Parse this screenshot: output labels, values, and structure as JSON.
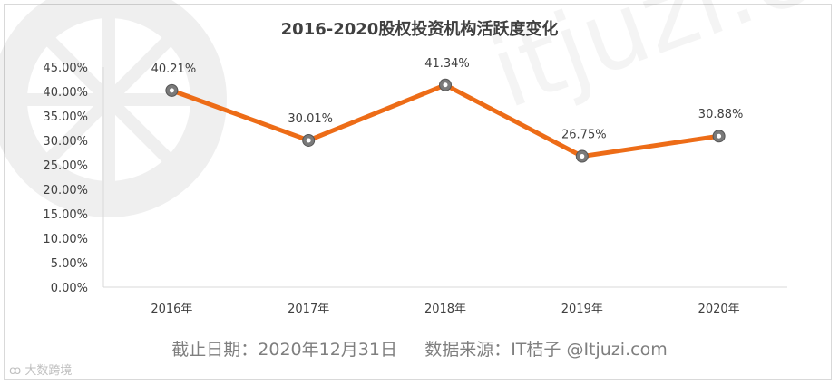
{
  "chart_data": {
    "type": "line",
    "title": "2016-2020股权投资机构活跃度变化",
    "categories": [
      "2016年",
      "2017年",
      "2018年",
      "2019年",
      "2020年"
    ],
    "series": [
      {
        "values": [
          40.21,
          30.01,
          41.34,
          26.75,
          30.88
        ],
        "labels": [
          "40.21%",
          "30.01%",
          "41.34%",
          "26.75%",
          "30.88%"
        ]
      }
    ],
    "ylim": [
      0,
      45
    ],
    "yticks": [
      0,
      5,
      10,
      15,
      20,
      25,
      30,
      35,
      40,
      45
    ],
    "ytick_labels": [
      "0.00%",
      "5.00%",
      "10.00%",
      "15.00%",
      "20.00%",
      "25.00%",
      "30.00%",
      "35.00%",
      "40.00%",
      "45.00%"
    ],
    "grid": false,
    "legend": "none",
    "colors": {
      "line": "#ed6c17",
      "marker_fill": "#7a7a7a",
      "marker_center": "#ffffff"
    }
  },
  "footer": {
    "date_label": "截止日期：2020年12月31日",
    "source_label": "数据来源：IT桔子 @Itjuzi.com"
  },
  "watermark_logo": "大数跨境"
}
